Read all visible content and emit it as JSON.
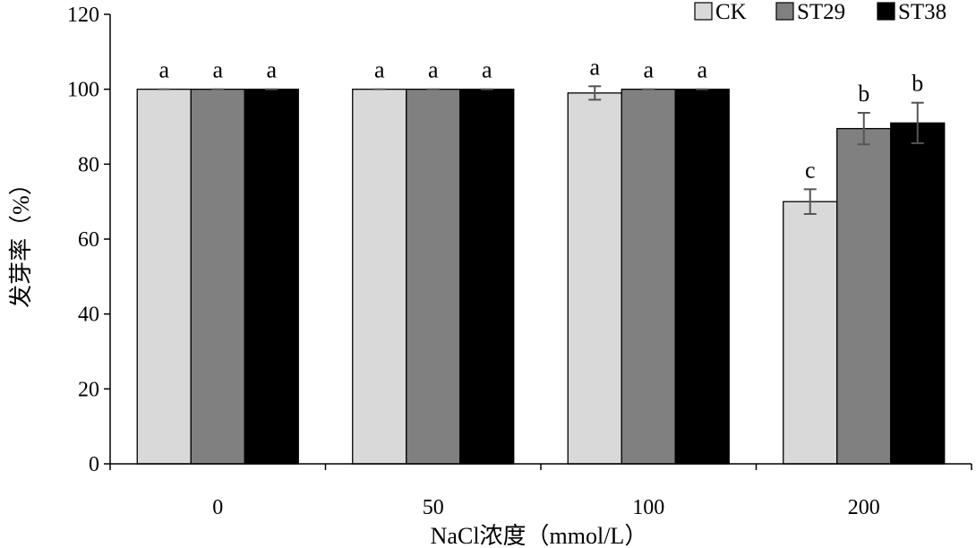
{
  "chart_data": {
    "type": "bar",
    "xlabel": "NaCl浓度（mmol/L）",
    "ylabel": "发芽率（%）",
    "ylim": [
      0,
      120
    ],
    "yticks": [
      "0",
      "20",
      "40",
      "60",
      "80",
      "100",
      "120"
    ],
    "categories": [
      "0",
      "50",
      "100",
      "200"
    ],
    "grid": false,
    "legend": "top-right",
    "series": [
      {
        "name": "CK",
        "color": "#d9d9d9",
        "values": [
          100,
          100,
          99,
          70
        ],
        "errors": [
          0,
          0,
          1.8,
          3.3
        ],
        "labels": [
          "a",
          "a",
          "a",
          "c"
        ]
      },
      {
        "name": "ST29",
        "color": "#808080",
        "values": [
          100,
          100,
          100,
          89.5
        ],
        "errors": [
          0,
          0,
          0,
          4.2
        ],
        "labels": [
          "a",
          "a",
          "a",
          "b"
        ]
      },
      {
        "name": "ST38",
        "color": "#000000",
        "values": [
          100,
          100,
          100,
          91
        ],
        "errors": [
          0,
          0,
          0,
          5.4
        ],
        "labels": [
          "a",
          "a",
          "a",
          "b"
        ]
      }
    ]
  }
}
